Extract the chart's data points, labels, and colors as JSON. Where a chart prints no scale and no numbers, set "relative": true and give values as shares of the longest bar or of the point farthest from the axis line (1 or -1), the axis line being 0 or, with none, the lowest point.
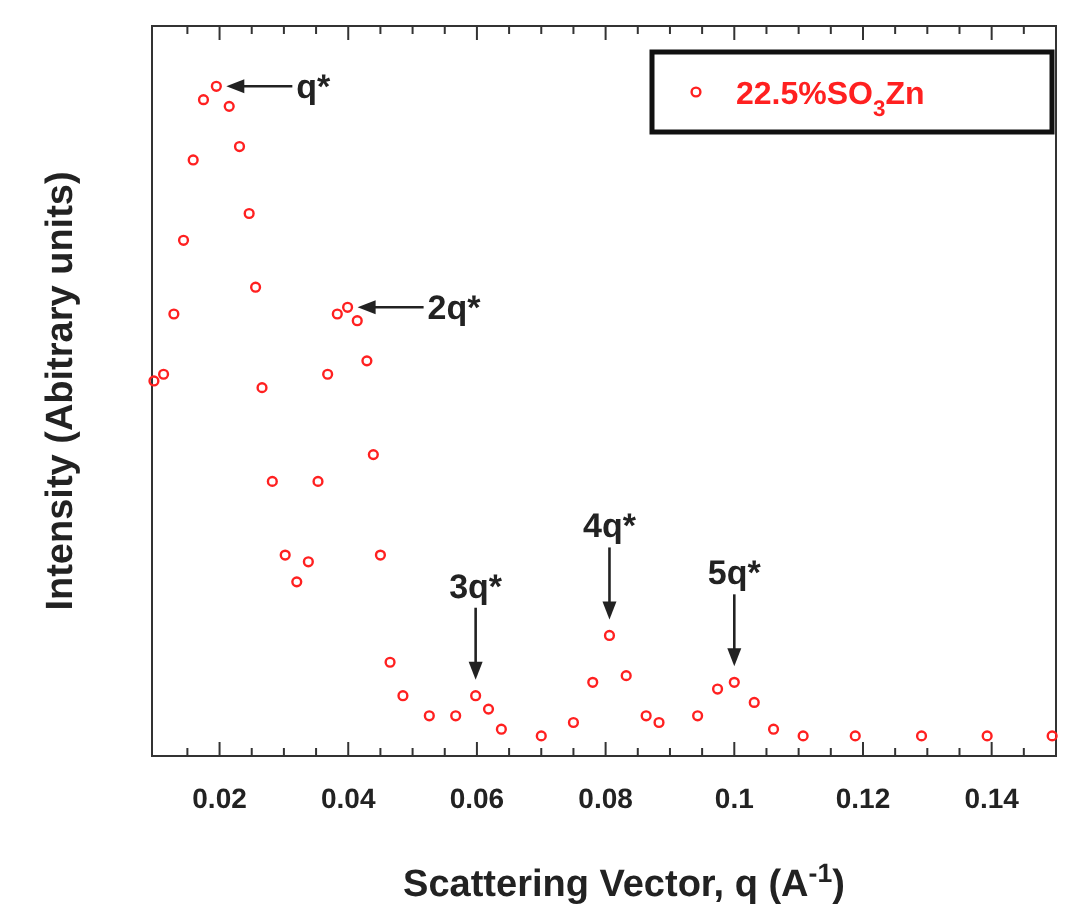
{
  "chart_data": {
    "type": "scatter",
    "relative": true,
    "xlabel": "Scattering Vector, q (A$^{-1}$)",
    "ylabel": "Intensity (Abitrary units)",
    "xlim": [
      0.0095,
      0.15
    ],
    "xticks": [
      {
        "value": 0.015,
        "label": null
      },
      0.02,
      {
        "value": 0.025,
        "label": null
      },
      {
        "value": 0.03,
        "label": null
      },
      {
        "value": 0.035,
        "label": null
      },
      0.04,
      {
        "value": 0.045,
        "label": null
      },
      {
        "value": 0.05,
        "label": null
      },
      {
        "value": 0.055,
        "label": null
      },
      0.06,
      {
        "value": 0.065,
        "label": null
      },
      {
        "value": 0.07,
        "label": null
      },
      {
        "value": 0.075,
        "label": null
      },
      0.08,
      {
        "value": 0.085,
        "label": null
      },
      {
        "value": 0.09,
        "label": null
      },
      {
        "value": 0.095,
        "label": null
      },
      0.1,
      {
        "value": 0.105,
        "label": null
      },
      {
        "value": 0.11,
        "label": null
      },
      {
        "value": 0.115,
        "label": null
      },
      0.12,
      {
        "value": 0.125,
        "label": null
      },
      {
        "value": 0.13,
        "label": null
      },
      {
        "value": 0.135,
        "label": null
      },
      0.14,
      {
        "value": 0.145,
        "label": null
      }
    ],
    "tick_labels": "x",
    "marker": "circle",
    "legend": "top right",
    "series": [
      {
        "name": "22.5%SO$_{3}$Zn",
        "color": "#ff2020",
        "x": [
          0.0098,
          0.0113,
          0.0129,
          0.0144,
          0.0159,
          0.0175,
          0.0195,
          0.0215,
          0.0231,
          0.0246,
          0.0256,
          0.0266,
          0.0282,
          0.0302,
          0.032,
          0.0338,
          0.0353,
          0.0368,
          0.0383,
          0.0399,
          0.0414,
          0.0429,
          0.0439,
          0.045,
          0.0465,
          0.0485,
          0.0526,
          0.0567,
          0.0598,
          0.0618,
          0.0638,
          0.07,
          0.075,
          0.078,
          0.0806,
          0.0832,
          0.0863,
          0.0883,
          0.0943,
          0.0974,
          0.1,
          0.1031,
          0.1061,
          0.1107,
          0.1188,
          0.1291,
          0.1393,
          0.1494
        ],
        "values": [
          0.56,
          0.57,
          0.66,
          0.77,
          0.89,
          0.98,
          1.0,
          0.97,
          0.91,
          0.81,
          0.7,
          0.55,
          0.41,
          0.3,
          0.26,
          0.29,
          0.41,
          0.57,
          0.66,
          0.67,
          0.65,
          0.59,
          0.45,
          0.3,
          0.14,
          0.09,
          0.06,
          0.06,
          0.09,
          0.07,
          0.04,
          0.03,
          0.05,
          0.11,
          0.18,
          0.12,
          0.06,
          0.05,
          0.06,
          0.1,
          0.11,
          0.08,
          0.04,
          0.03,
          0.03,
          0.03,
          0.03,
          0.03
        ]
      }
    ],
    "annotations": [
      {
        "text": "q*",
        "x": 0.0195,
        "y": 1.0
      },
      {
        "text": "2q*",
        "x": 0.0399,
        "y": 0.67
      },
      {
        "text": "3q*",
        "x": 0.0598,
        "y": 0.09
      },
      {
        "text": "4q*",
        "x": 0.0806,
        "y": 0.18
      },
      {
        "text": "5q*",
        "x": 0.1,
        "y": 0.11
      }
    ]
  }
}
